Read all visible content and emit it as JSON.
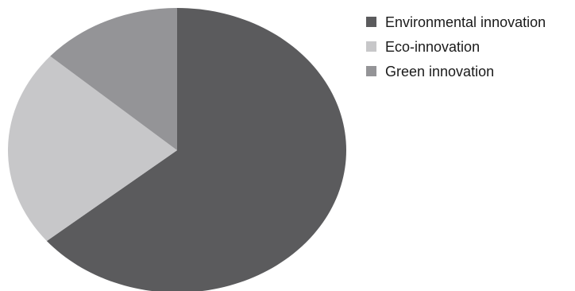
{
  "chart_data": {
    "type": "pie",
    "categories": [
      "Environmental innovation",
      "Eco-innovation",
      "Green innovation"
    ],
    "values": [
      64,
      22.5,
      13.5
    ],
    "colors": [
      "#5b5b5d",
      "#c7c7c9",
      "#949497"
    ],
    "start_angle_deg": 0,
    "direction": "clockwise",
    "legend_position": "top-right"
  }
}
